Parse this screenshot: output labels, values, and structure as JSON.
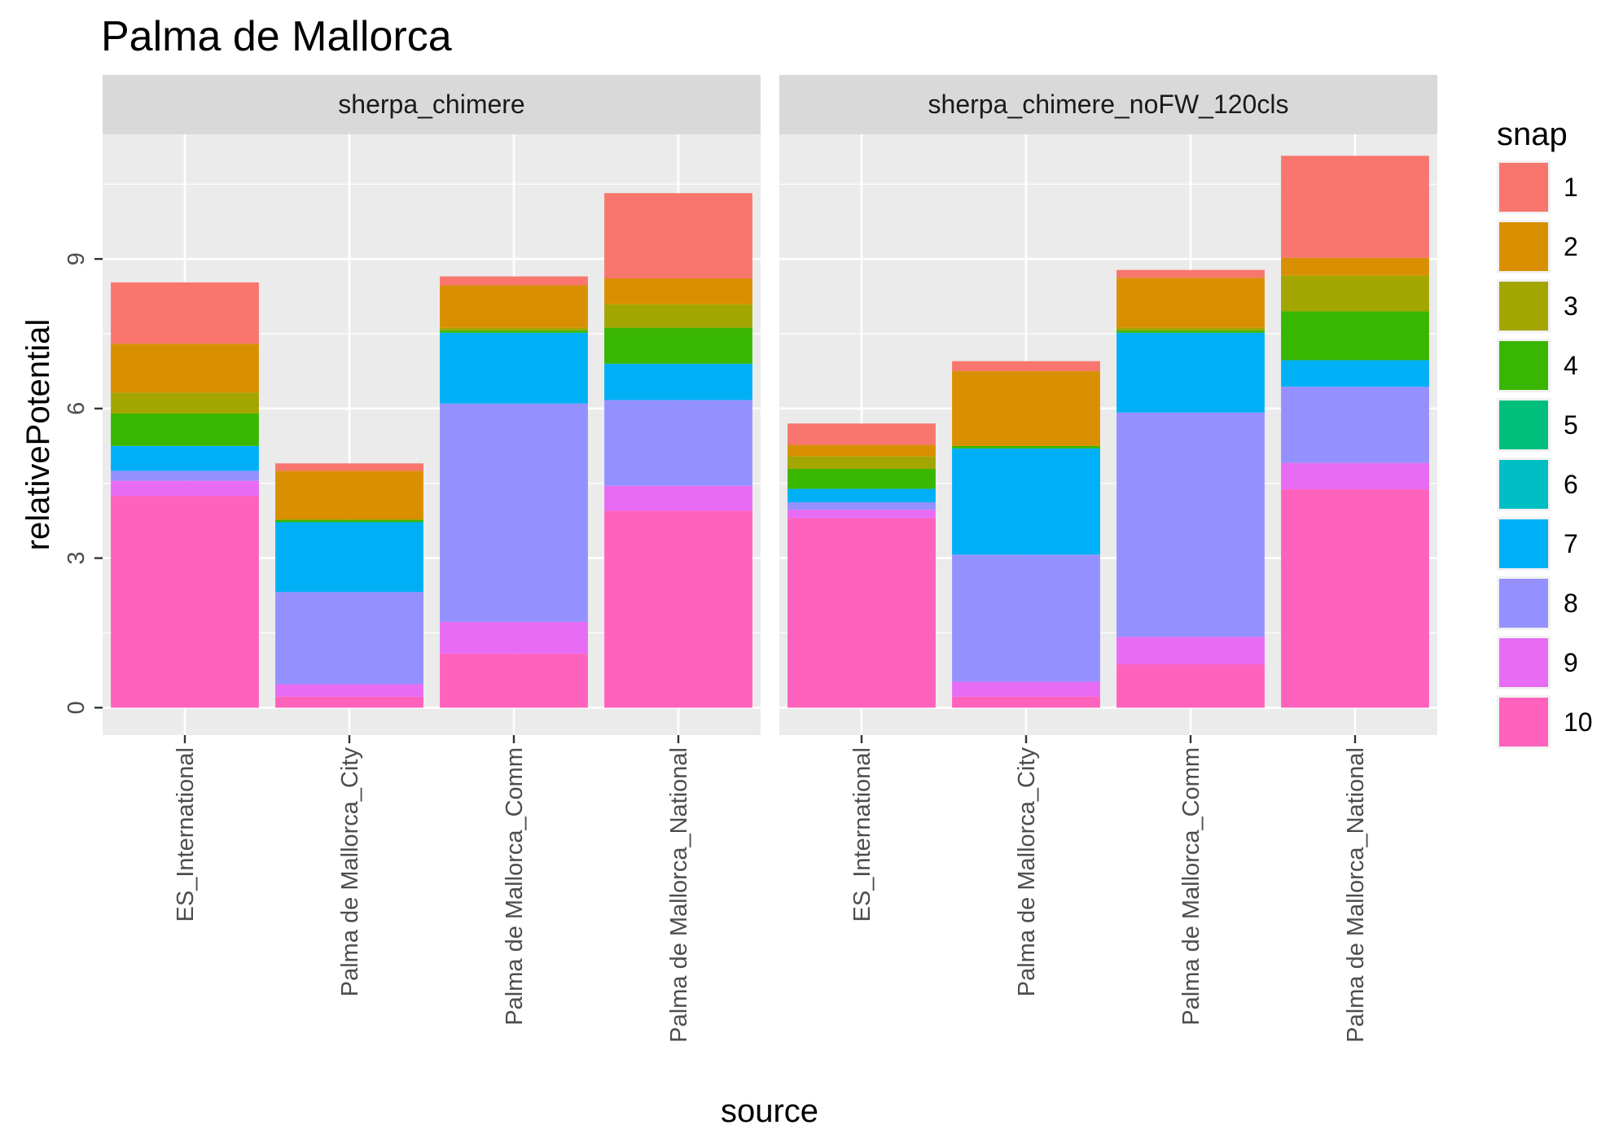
{
  "chart_data": {
    "type": "bar",
    "stacked": true,
    "faceted": true,
    "title": "Palma de Mallorca",
    "xlabel": "source",
    "ylabel": "relativePotential",
    "ylim": [
      -0.55,
      11.5
    ],
    "yticks": [
      0,
      3,
      6,
      9
    ],
    "grid": true,
    "legend": {
      "title": "snap",
      "position": "right"
    },
    "categories": [
      "ES_International",
      "Palma de Mallorca_City",
      "Palma de Mallorca_Comm",
      "Palma de Mallorca_National"
    ],
    "snaps": [
      "1",
      "2",
      "3",
      "4",
      "5",
      "6",
      "7",
      "8",
      "9",
      "10"
    ],
    "colors": [
      "#F8766D",
      "#D89000",
      "#A3A500",
      "#39B600",
      "#00BF7D",
      "#00BFC4",
      "#00B0F6",
      "#9590FF",
      "#E76BF3",
      "#FF62BC"
    ],
    "stack_order_bottom_to_top": [
      "10",
      "9",
      "8",
      "7",
      "6",
      "5",
      "4",
      "3",
      "2",
      "1"
    ],
    "facets": [
      {
        "name": "sherpa_chimere",
        "bars": [
          {
            "category": "ES_International",
            "values": {
              "10": 4.25,
              "9": 0.3,
              "8": 0.2,
              "7": 0.5,
              "6": 0,
              "5": 0,
              "4": 0.65,
              "3": 0.42,
              "2": 0.98,
              "1": 1.23
            }
          },
          {
            "category": "Palma de Mallorca_City",
            "values": {
              "10": 0.22,
              "9": 0.25,
              "8": 1.85,
              "7": 1.4,
              "6": 0,
              "5": 0,
              "4": 0.05,
              "3": 0,
              "2": 0.98,
              "1": 0.15
            }
          },
          {
            "category": "Palma de Mallorca_Comm",
            "values": {
              "10": 1.08,
              "9": 0.64,
              "8": 4.38,
              "7": 1.42,
              "6": 0,
              "5": 0,
              "4": 0.05,
              "3": 0.05,
              "2": 0.85,
              "1": 0.18
            }
          },
          {
            "category": "Palma de Mallorca_National",
            "values": {
              "10": 3.95,
              "9": 0.5,
              "8": 1.72,
              "7": 0.73,
              "6": 0,
              "5": 0,
              "4": 0.72,
              "3": 0.47,
              "2": 0.52,
              "1": 1.71
            }
          }
        ]
      },
      {
        "name": "sherpa_chimere_noFW_120cls",
        "bars": [
          {
            "category": "ES_International",
            "values": {
              "10": 3.8,
              "9": 0.17,
              "8": 0.15,
              "7": 0.27,
              "6": 0,
              "5": 0,
              "4": 0.4,
              "3": 0.25,
              "2": 0.23,
              "1": 0.43
            }
          },
          {
            "category": "Palma de Mallorca_City",
            "values": {
              "10": 0.22,
              "9": 0.3,
              "8": 2.55,
              "7": 2.13,
              "6": 0,
              "5": 0,
              "4": 0.05,
              "3": 0,
              "2": 1.5,
              "1": 0.2
            }
          },
          {
            "category": "Palma de Mallorca_Comm",
            "values": {
              "10": 0.87,
              "9": 0.55,
              "8": 4.5,
              "7": 1.6,
              "6": 0,
              "5": 0,
              "4": 0.05,
              "3": 0.05,
              "2": 1.0,
              "1": 0.16
            }
          },
          {
            "category": "Palma de Mallorca_National",
            "values": {
              "10": 4.38,
              "9": 0.53,
              "8": 1.53,
              "7": 0.53,
              "6": 0,
              "5": 0,
              "4": 0.98,
              "3": 0.72,
              "2": 0.35,
              "1": 2.05
            }
          }
        ]
      }
    ]
  },
  "theme": {
    "panel_bg": "#EBEBEB",
    "strip_bg": "#D9D9D9",
    "grid_color": "#FFFFFF",
    "tick_color": "#333333"
  }
}
